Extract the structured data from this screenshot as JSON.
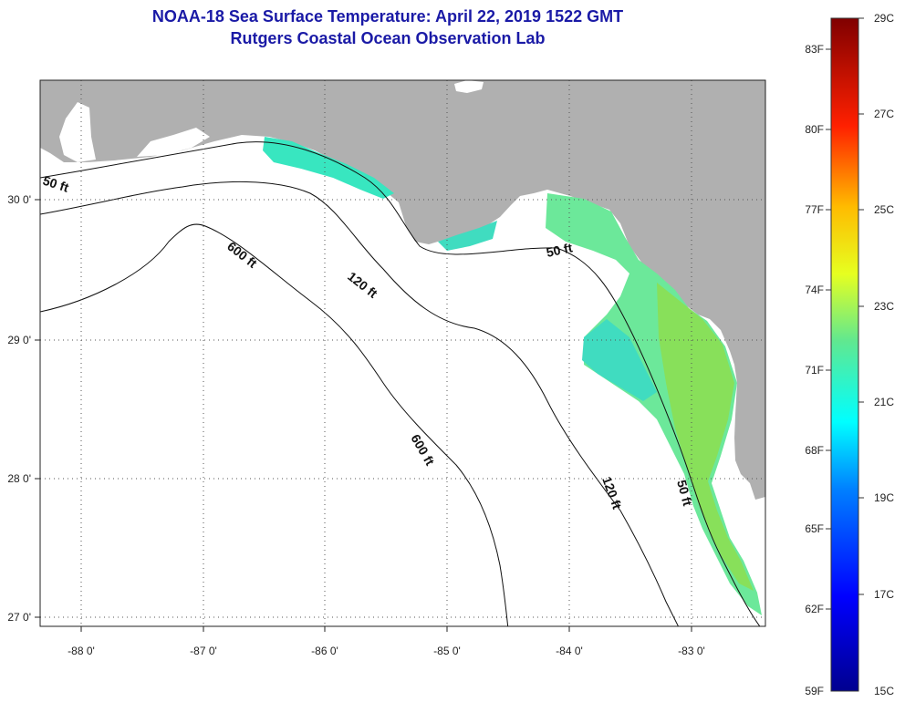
{
  "header": {
    "title": "NOAA-18 Sea Surface Temperature:  April 22, 2019 1522 GMT",
    "subtitle": "Rutgers Coastal Ocean Observation Lab"
  },
  "axes": {
    "lon_labels": [
      "-88 0'",
      "-87 0'",
      "-86 0'",
      "-85 0'",
      "-84 0'",
      "-83 0'"
    ],
    "lat_labels": [
      "30 0'",
      "29 0'",
      "28 0'",
      "27 0'"
    ]
  },
  "depth_contours": {
    "labels": [
      "50 ft",
      "600 ft",
      "120 ft",
      "50 ft",
      "600 ft",
      "120 ft",
      "50 ft"
    ]
  },
  "colorbar": {
    "fahrenheit": [
      "83F",
      "80F",
      "77F",
      "74F",
      "71F",
      "68F",
      "65F",
      "62F",
      "59F"
    ],
    "celsius": [
      "29C",
      "27C",
      "25C",
      "23C",
      "21C",
      "19C",
      "17C",
      "15C"
    ]
  },
  "colors": {
    "land": "#b0b0b0",
    "title": "#1a1aa6",
    "sst_warm": "#88e05a",
    "sst_cool": "#38e6c0"
  }
}
